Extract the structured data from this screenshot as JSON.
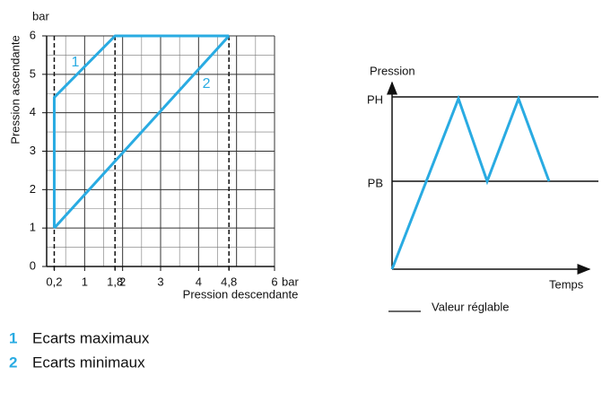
{
  "chart_data": {
    "type": "line",
    "x_label": "Pression descendante",
    "y_label": "Pression ascendante",
    "x_unit": "bar",
    "y_unit": "bar",
    "xlim": [
      0,
      6
    ],
    "ylim": [
      0,
      6
    ],
    "xticks": [
      {
        "value": 0.2,
        "label": "0,2"
      },
      1,
      {
        "value": 1.8,
        "label": "1,8"
      },
      2,
      3,
      4,
      {
        "value": 4.8,
        "label": "4,8"
      },
      6
    ],
    "yticks": [
      0,
      1,
      2,
      3,
      4,
      5,
      6
    ],
    "grid": true,
    "minor_grid": 0.5,
    "dashed_x": [
      0.2,
      1.8,
      4.8
    ],
    "series": [
      {
        "name": "1",
        "label": "Ecarts maximaux",
        "color": "#29abe2",
        "x": [
          0.2,
          0.2,
          1.8,
          4.8
        ],
        "values": [
          1,
          4.4,
          6,
          6
        ]
      },
      {
        "name": "2",
        "label": "Ecarts minimaux",
        "color": "#29abe2",
        "x": [
          0.2,
          4.8
        ],
        "values": [
          1,
          6
        ]
      }
    ]
  },
  "diagram": {
    "y_label": "Pression",
    "levels": [
      "PH",
      "PB"
    ],
    "x_label": "Temps",
    "note": "Valeur réglable"
  }
}
